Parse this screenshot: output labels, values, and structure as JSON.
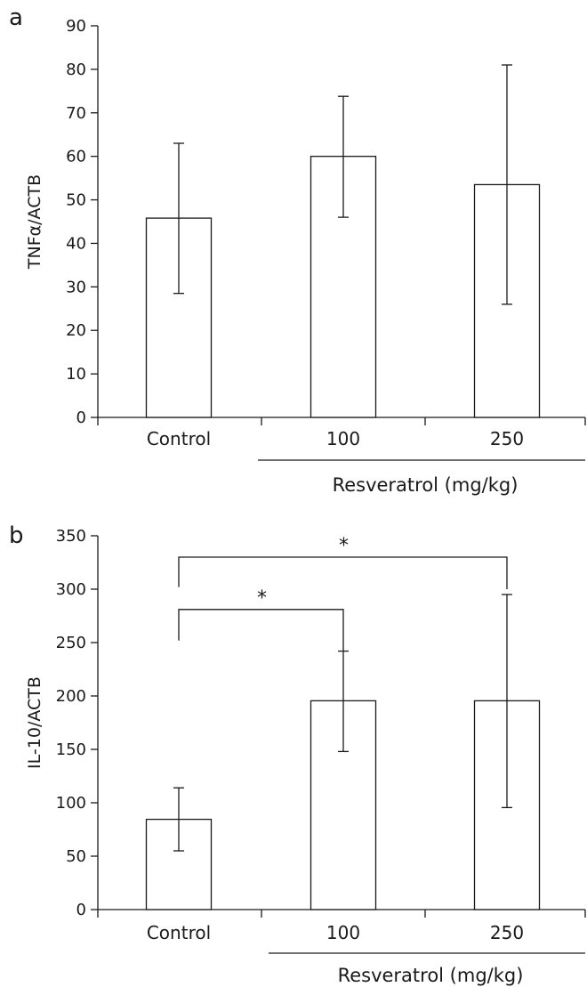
{
  "colors": {
    "bar_fill": "#ffffff",
    "ink": "#1a1a1a"
  },
  "chart_data": [
    {
      "type": "bar",
      "panel_letter": "a",
      "categories": [
        "Control",
        "100",
        "250"
      ],
      "values": [
        45.8,
        60.0,
        53.5
      ],
      "error_low": [
        28.5,
        46.0,
        26.0
      ],
      "error_high": [
        63.0,
        73.8,
        81.0
      ],
      "ylabel": "TNFα/ACTB",
      "ylim": [
        0,
        90
      ],
      "yticks": [
        0,
        10,
        20,
        30,
        40,
        50,
        60,
        70,
        80,
        90
      ],
      "group_label": "Resveratrol (mg/kg)",
      "grid": false,
      "significance": []
    },
    {
      "type": "bar",
      "panel_letter": "b",
      "categories": [
        "Control",
        "100",
        "250"
      ],
      "values": [
        84.5,
        195.5,
        195.5
      ],
      "error_low": [
        55.0,
        148.0,
        95.5
      ],
      "error_high": [
        114.0,
        242.0,
        295.0
      ],
      "ylabel": "IL-10/ACTB",
      "ylim": [
        0,
        350
      ],
      "yticks": [
        0,
        50,
        100,
        150,
        200,
        250,
        300,
        350
      ],
      "group_label": "Resveratrol (mg/kg)",
      "grid": false,
      "significance": [
        {
          "from": 0,
          "to": 1,
          "label": "*",
          "level": 281,
          "start": 252,
          "end": 242
        },
        {
          "from": 0,
          "to": 2,
          "label": "*",
          "level": 330,
          "start": 302,
          "end": 300
        }
      ]
    }
  ]
}
